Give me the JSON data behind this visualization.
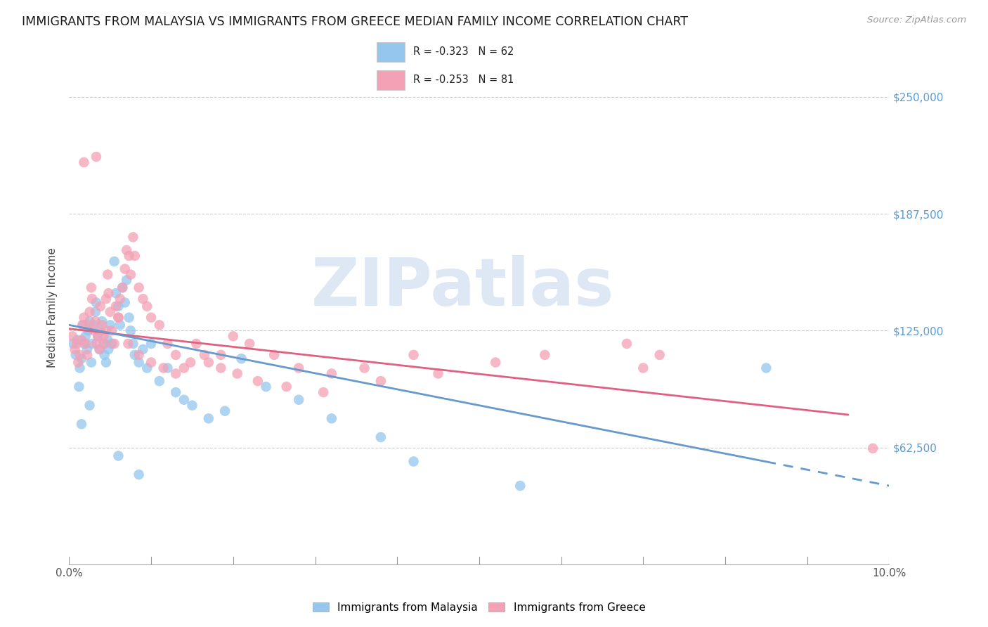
{
  "title": "IMMIGRANTS FROM MALAYSIA VS IMMIGRANTS FROM GREECE MEDIAN FAMILY INCOME CORRELATION CHART",
  "source": "Source: ZipAtlas.com",
  "ylabel": "Median Family Income",
  "xlim": [
    0.0,
    10.0
  ],
  "ylim": [
    0,
    275000
  ],
  "yticks": [
    62500,
    125000,
    187500,
    250000
  ],
  "ytick_labels": [
    "$62,500",
    "$125,000",
    "$187,500",
    "$250,000"
  ],
  "xticks": [
    0.0,
    1.0,
    2.0,
    3.0,
    4.0,
    5.0,
    6.0,
    7.0,
    8.0,
    9.0,
    10.0
  ],
  "xtick_labels": [
    "0.0%",
    "",
    "",
    "",
    "",
    "",
    "",
    "",
    "",
    "",
    "10.0%"
  ],
  "color_malaysia": "#94C6EE",
  "color_greece": "#F4A0B5",
  "color_trendline_malaysia": "#6699CC",
  "color_trendline_greece": "#E06080",
  "color_axis_labels": "#5B9BD5",
  "R_malaysia": -0.323,
  "N_malaysia": 62,
  "R_greece": -0.253,
  "N_greece": 81,
  "watermark": "ZIPatlas",
  "watermark_color": "#C8D8EE",
  "trend_malaysia_x0": 0.0,
  "trend_malaysia_y0": 128000,
  "trend_malaysia_x1": 10.0,
  "trend_malaysia_y1": 42000,
  "trend_greece_x0": 0.0,
  "trend_greece_y0": 126000,
  "trend_greece_x1": 9.5,
  "trend_greece_y1": 80000,
  "malaysia_solid_end": 8.5,
  "malaysia_x": [
    0.05,
    0.08,
    0.1,
    0.12,
    0.13,
    0.15,
    0.17,
    0.18,
    0.2,
    0.22,
    0.23,
    0.25,
    0.27,
    0.28,
    0.3,
    0.32,
    0.33,
    0.35,
    0.37,
    0.38,
    0.4,
    0.42,
    0.43,
    0.45,
    0.47,
    0.48,
    0.5,
    0.52,
    0.55,
    0.57,
    0.6,
    0.62,
    0.65,
    0.68,
    0.7,
    0.73,
    0.75,
    0.78,
    0.8,
    0.85,
    0.9,
    0.95,
    1.0,
    1.1,
    1.2,
    1.3,
    1.4,
    1.5,
    1.7,
    1.9,
    2.1,
    2.4,
    2.8,
    3.2,
    3.8,
    4.2,
    5.5,
    8.5,
    0.15,
    0.25,
    0.6,
    0.85
  ],
  "malaysia_y": [
    118000,
    112000,
    120000,
    95000,
    105000,
    110000,
    128000,
    118000,
    122000,
    115000,
    125000,
    130000,
    108000,
    118000,
    128000,
    135000,
    140000,
    122000,
    115000,
    125000,
    130000,
    118000,
    112000,
    108000,
    120000,
    115000,
    128000,
    118000,
    162000,
    145000,
    138000,
    128000,
    148000,
    140000,
    152000,
    132000,
    125000,
    118000,
    112000,
    108000,
    115000,
    105000,
    118000,
    98000,
    105000,
    92000,
    88000,
    85000,
    78000,
    82000,
    110000,
    95000,
    88000,
    78000,
    68000,
    55000,
    42000,
    105000,
    75000,
    85000,
    58000,
    48000
  ],
  "greece_x": [
    0.04,
    0.07,
    0.09,
    0.11,
    0.13,
    0.15,
    0.16,
    0.18,
    0.2,
    0.22,
    0.23,
    0.25,
    0.27,
    0.28,
    0.3,
    0.32,
    0.33,
    0.35,
    0.37,
    0.38,
    0.4,
    0.42,
    0.43,
    0.45,
    0.47,
    0.48,
    0.5,
    0.52,
    0.55,
    0.57,
    0.6,
    0.62,
    0.65,
    0.68,
    0.7,
    0.73,
    0.75,
    0.78,
    0.8,
    0.85,
    0.9,
    0.95,
    1.0,
    1.1,
    1.2,
    1.3,
    1.4,
    1.55,
    1.7,
    1.85,
    2.0,
    2.2,
    2.5,
    2.8,
    3.2,
    3.8,
    4.2,
    5.2,
    6.8,
    7.2,
    9.8,
    0.18,
    0.33,
    0.45,
    0.6,
    0.72,
    0.85,
    1.0,
    1.15,
    1.3,
    1.48,
    1.65,
    1.85,
    2.05,
    2.3,
    2.65,
    3.1,
    3.6,
    4.5,
    5.8,
    7.0
  ],
  "greece_y": [
    122000,
    115000,
    118000,
    108000,
    112000,
    120000,
    128000,
    132000,
    118000,
    112000,
    128000,
    135000,
    148000,
    142000,
    125000,
    130000,
    118000,
    122000,
    115000,
    138000,
    128000,
    122000,
    118000,
    142000,
    155000,
    145000,
    135000,
    125000,
    118000,
    138000,
    132000,
    142000,
    148000,
    158000,
    168000,
    165000,
    155000,
    175000,
    165000,
    148000,
    142000,
    138000,
    132000,
    128000,
    118000,
    112000,
    105000,
    118000,
    108000,
    112000,
    122000,
    118000,
    112000,
    105000,
    102000,
    98000,
    112000,
    108000,
    118000,
    112000,
    62000,
    215000,
    218000,
    125000,
    132000,
    118000,
    112000,
    108000,
    105000,
    102000,
    108000,
    112000,
    105000,
    102000,
    98000,
    95000,
    92000,
    105000,
    102000,
    112000,
    105000
  ]
}
